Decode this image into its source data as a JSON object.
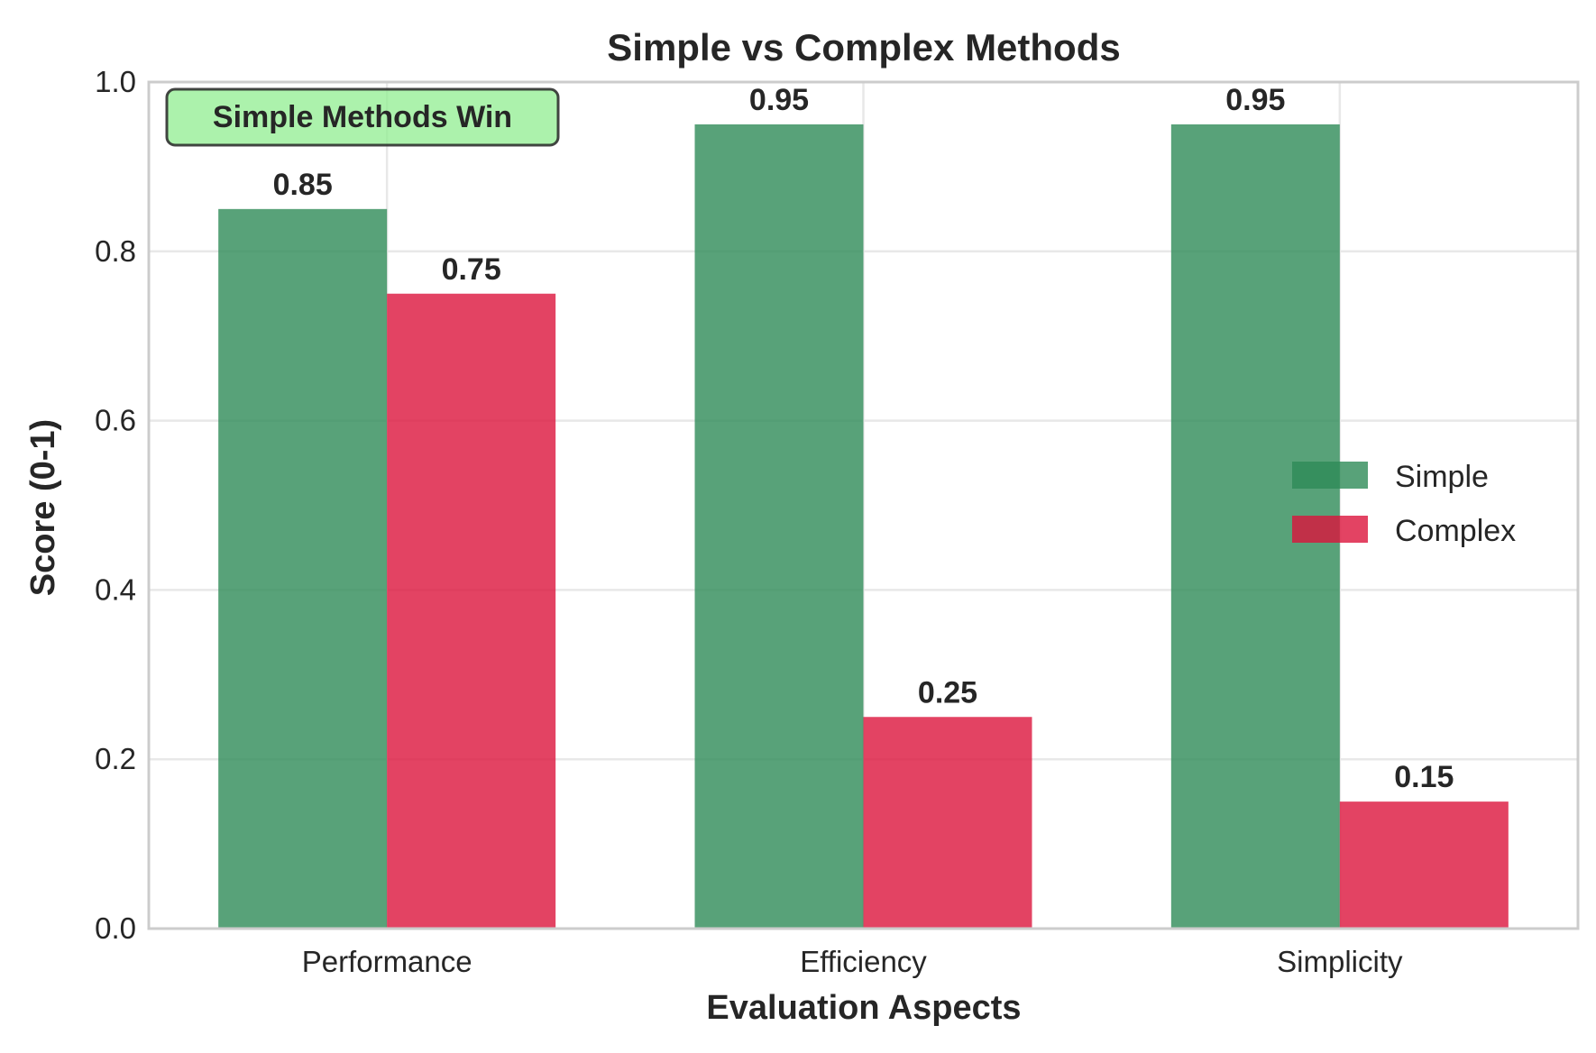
{
  "chart_data": {
    "type": "bar",
    "title": "Simple vs Complex Methods",
    "xlabel": "Evaluation Aspects",
    "ylabel": "Score (0-1)",
    "categories": [
      "Performance",
      "Efficiency",
      "Simplicity"
    ],
    "series": [
      {
        "name": "Simple",
        "values": [
          0.85,
          0.95,
          0.95
        ],
        "color": "#2e8b57"
      },
      {
        "name": "Complex",
        "values": [
          0.75,
          0.25,
          0.15
        ],
        "color": "#dc143c"
      }
    ],
    "value_labels": [
      [
        "0.85",
        "0.95",
        "0.95"
      ],
      [
        "0.75",
        "0.25",
        "0.15"
      ]
    ],
    "ylim": [
      0,
      1.0
    ],
    "yticks": [
      0.0,
      0.2,
      0.4,
      0.6,
      0.8,
      1.0
    ],
    "ytick_labels": [
      "0.0",
      "0.2",
      "0.4",
      "0.6",
      "0.8",
      "1.0"
    ],
    "grid": true,
    "legend": "center-right",
    "annotation": {
      "text": "Simple Methods Win",
      "placement": "top-left",
      "color": "#90ee90"
    }
  }
}
